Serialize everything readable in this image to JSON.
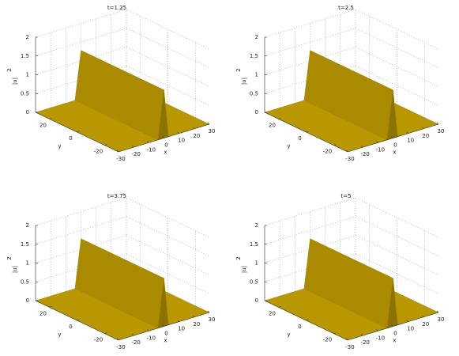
{
  "chart_data": [
    {
      "type": "surface",
      "title": "t=1.25",
      "xlabel": "x",
      "ylabel": "y",
      "zlabel": "|u|",
      "zlabel_power": "2",
      "xlim": [
        -30,
        30
      ],
      "ylim": [
        -30,
        30
      ],
      "zlim": [
        0,
        2
      ],
      "xticks": [
        -30,
        -20,
        -10,
        0,
        10,
        20,
        30
      ],
      "yticks": [
        -20,
        0,
        20
      ],
      "zticks": [
        0,
        0.5,
        1,
        1.5,
        2
      ],
      "grid": true,
      "color": "#c8a400"
    },
    {
      "type": "surface",
      "title": "t=2.5",
      "xlabel": "x",
      "ylabel": "y",
      "zlabel": "|u|",
      "zlabel_power": "2",
      "xlim": [
        -30,
        30
      ],
      "ylim": [
        -30,
        30
      ],
      "zlim": [
        0,
        2
      ],
      "xticks": [
        -30,
        -20,
        -10,
        0,
        10,
        20,
        30
      ],
      "yticks": [
        -20,
        0,
        20
      ],
      "zticks": [
        0,
        0.5,
        1,
        1.5,
        2
      ],
      "grid": true,
      "color": "#c8a400"
    },
    {
      "type": "surface",
      "title": "t=3.75",
      "xlabel": "x",
      "ylabel": "y",
      "zlabel": "|u|",
      "zlabel_power": "2",
      "xlim": [
        -30,
        30
      ],
      "ylim": [
        -30,
        30
      ],
      "zlim": [
        0,
        2
      ],
      "xticks": [
        -30,
        -20,
        -10,
        0,
        10,
        20,
        30
      ],
      "yticks": [
        -20,
        0,
        20
      ],
      "zticks": [
        0,
        0.5,
        1,
        1.5,
        2
      ],
      "grid": true,
      "color": "#c8a400"
    },
    {
      "type": "surface",
      "title": "t=5",
      "xlabel": "x",
      "ylabel": "y",
      "zlabel": "|u|",
      "zlabel_power": "2",
      "xlim": [
        -30,
        30
      ],
      "ylim": [
        -30,
        30
      ],
      "zlim": [
        0,
        2
      ],
      "xticks": [
        -30,
        -20,
        -10,
        0,
        10,
        20,
        30
      ],
      "yticks": [
        -20,
        0,
        20
      ],
      "zticks": [
        0,
        0.5,
        1,
        1.5,
        2
      ],
      "grid": true,
      "color": "#c8a400"
    }
  ]
}
